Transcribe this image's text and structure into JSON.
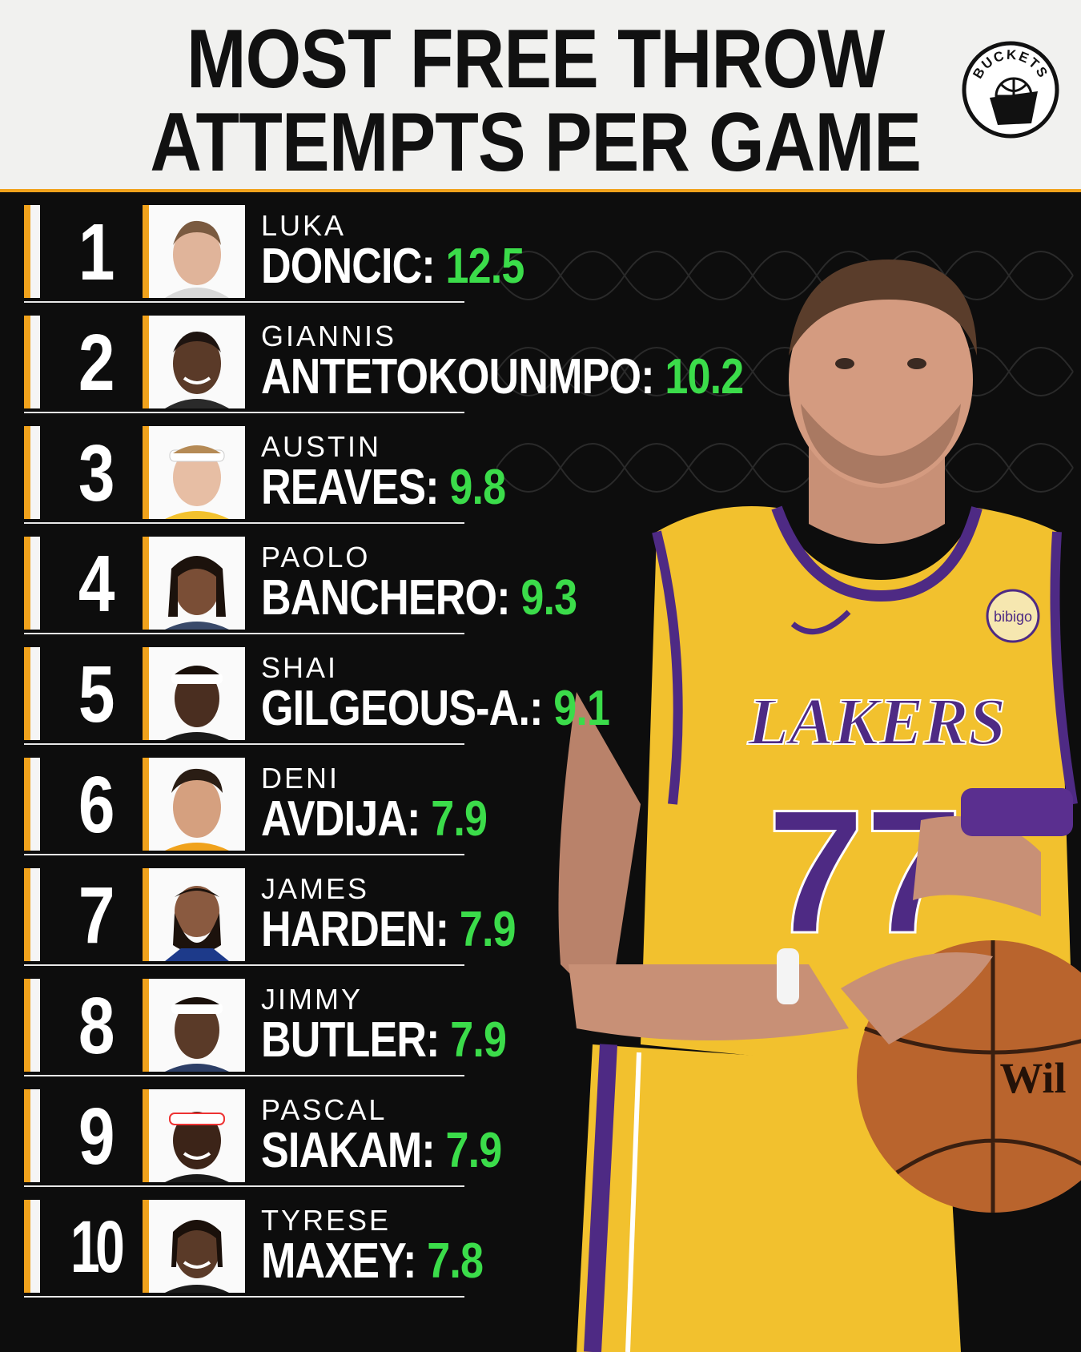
{
  "header": {
    "title_line1": "MOST FREE THROW",
    "title_line2": "ATTEMPTS PER GAME",
    "logo_text": "BUCKETS"
  },
  "colors": {
    "accent": "#f0a21c",
    "value_green": "#3bdc4a",
    "background": "#0d0d0d",
    "header_bg": "#f1f1ef"
  },
  "rankings": [
    {
      "rank": "1",
      "first": "LUKA",
      "last": "DONCIC:",
      "value": "12.5"
    },
    {
      "rank": "2",
      "first": "GIANNIS",
      "last": "ANTETOKOUNMPO:",
      "value": "10.2"
    },
    {
      "rank": "3",
      "first": "AUSTIN",
      "last": "REAVES:",
      "value": "9.8"
    },
    {
      "rank": "4",
      "first": "PAOLO",
      "last": "BANCHERO:",
      "value": "9.3"
    },
    {
      "rank": "5",
      "first": "SHAI",
      "last": "GILGEOUS-A.:",
      "value": "9.1"
    },
    {
      "rank": "6",
      "first": "DENI",
      "last": "AVDIJA:",
      "value": "7.9"
    },
    {
      "rank": "7",
      "first": "JAMES",
      "last": "HARDEN:",
      "value": "7.9"
    },
    {
      "rank": "8",
      "first": "JIMMY",
      "last": "BUTLER:",
      "value": "7.9"
    },
    {
      "rank": "9",
      "first": "PASCAL",
      "last": "SIAKAM:",
      "value": "7.9"
    },
    {
      "rank": "10",
      "first": "TYRESE",
      "last": "MAXEY:",
      "value": "7.8"
    }
  ],
  "jersey": {
    "team": "LAKERS",
    "number": "77",
    "sponsor": "bibigo"
  }
}
